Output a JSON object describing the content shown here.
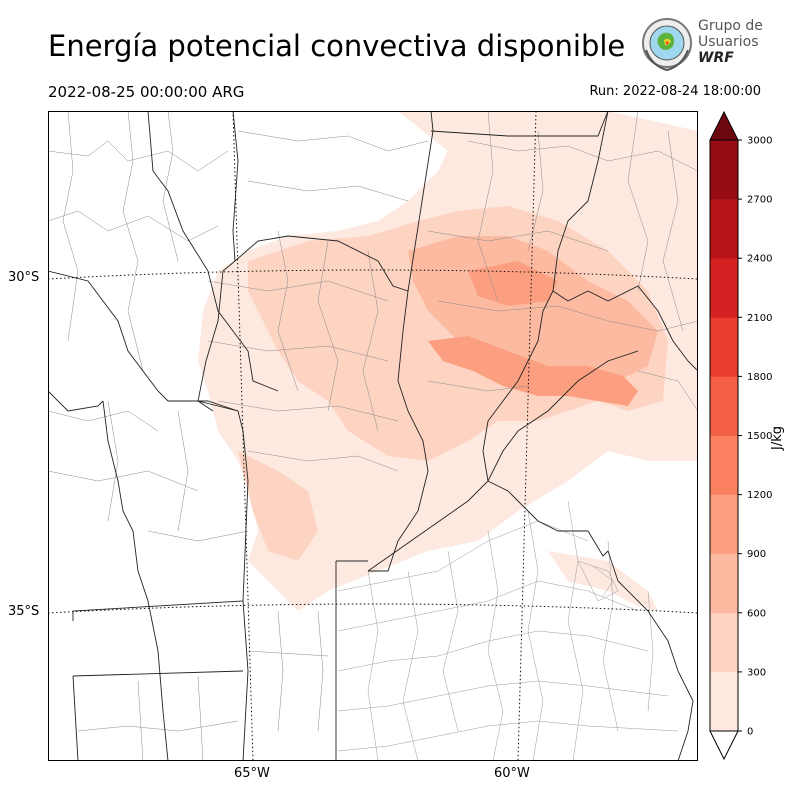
{
  "title": "Energía potencial convectiva disponible",
  "valid_time": "2022-08-25 00:00:00 ARG",
  "run_time": "Run: 2022-08-24 18:00:00",
  "logo": {
    "line1": "Grupo de",
    "line2": "Usuarios",
    "line3": "WRF"
  },
  "map": {
    "lat_labels": [
      "30°S",
      "35°S"
    ],
    "lon_labels": [
      "65°W",
      "60°W"
    ]
  },
  "colorbar": {
    "unit": "J/kg",
    "ticks": [
      "0",
      "300",
      "600",
      "900",
      "1200",
      "1500",
      "1800",
      "2100",
      "2400",
      "2700",
      "3000"
    ],
    "colors": [
      "#fee9e1",
      "#fdd3c2",
      "#fcbba1",
      "#fc9f81",
      "#fb8161",
      "#f56044",
      "#ea3b2f",
      "#d32020",
      "#b61419",
      "#960c13",
      "#6b0810"
    ],
    "extend": "max"
  }
}
